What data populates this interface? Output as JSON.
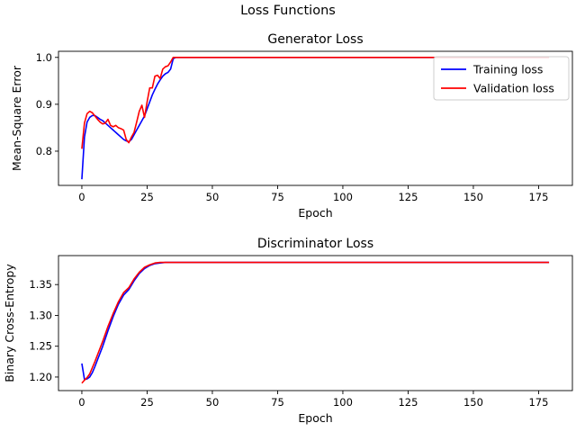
{
  "figure": {
    "suptitle": "Loss Functions"
  },
  "chart_data": [
    {
      "type": "line",
      "title": "Generator Loss",
      "xlabel": "Epoch",
      "ylabel": "Mean-Square Error",
      "xlim": [
        -8.95,
        187.95
      ],
      "ylim": [
        0.727,
        1.013
      ],
      "xticks": [
        0,
        25,
        50,
        75,
        100,
        125,
        150,
        175
      ],
      "yticks": [
        0.8,
        0.9,
        1.0
      ],
      "ytick_labels": [
        "0.8",
        "0.9",
        "1.0"
      ],
      "grid": false,
      "legend": "top-right",
      "series": [
        {
          "name": "Training loss",
          "color": "#0000ff",
          "x": [
            0,
            1,
            2,
            3,
            4,
            5,
            6,
            7,
            8,
            9,
            10,
            11,
            12,
            13,
            14,
            15,
            16,
            17,
            18,
            19,
            20,
            21,
            22,
            23,
            24,
            25,
            26,
            27,
            28,
            29,
            30,
            31,
            32,
            33,
            34,
            35,
            36,
            40,
            60,
            80,
            100,
            120,
            140,
            160,
            179
          ],
          "y": [
            0.74,
            0.83,
            0.862,
            0.872,
            0.876,
            0.876,
            0.872,
            0.868,
            0.865,
            0.86,
            0.855,
            0.85,
            0.845,
            0.84,
            0.835,
            0.83,
            0.825,
            0.822,
            0.82,
            0.825,
            0.835,
            0.845,
            0.855,
            0.865,
            0.875,
            0.89,
            0.905,
            0.92,
            0.932,
            0.943,
            0.952,
            0.96,
            0.965,
            0.968,
            0.975,
            0.997,
            1.0,
            1.0,
            1.0,
            1.0,
            1.0,
            1.0,
            1.0,
            1.0,
            1.0
          ]
        },
        {
          "name": "Validation loss",
          "color": "#ff0000",
          "x": [
            0,
            1,
            2,
            3,
            4,
            5,
            6,
            7,
            8,
            9,
            10,
            11,
            12,
            13,
            14,
            15,
            16,
            17,
            18,
            19,
            20,
            21,
            22,
            23,
            24,
            25,
            26,
            27,
            28,
            29,
            30,
            31,
            32,
            33,
            34,
            35,
            36,
            40,
            60,
            80,
            100,
            120,
            140,
            160,
            179
          ],
          "y": [
            0.805,
            0.86,
            0.88,
            0.885,
            0.882,
            0.875,
            0.868,
            0.862,
            0.858,
            0.86,
            0.868,
            0.855,
            0.852,
            0.855,
            0.85,
            0.848,
            0.845,
            0.825,
            0.818,
            0.83,
            0.84,
            0.862,
            0.885,
            0.898,
            0.872,
            0.905,
            0.935,
            0.935,
            0.96,
            0.962,
            0.955,
            0.975,
            0.98,
            0.982,
            0.99,
            1.0,
            1.0,
            1.0,
            1.0,
            1.0,
            1.0,
            1.0,
            1.0,
            1.0,
            1.0
          ]
        }
      ]
    },
    {
      "type": "line",
      "title": "Discriminator Loss",
      "xlabel": "Epoch",
      "ylabel": "Binary Cross-Entropy",
      "xlim": [
        -8.95,
        187.95
      ],
      "ylim": [
        1.178,
        1.397
      ],
      "xticks": [
        0,
        25,
        50,
        75,
        100,
        125,
        150,
        175
      ],
      "yticks": [
        1.2,
        1.25,
        1.3,
        1.35
      ],
      "ytick_labels": [
        "1.20",
        "1.25",
        "1.30",
        "1.35"
      ],
      "grid": false,
      "series": [
        {
          "name": "Training loss",
          "color": "#0000ff",
          "x": [
            0,
            1,
            2,
            3,
            4,
            5,
            6,
            8,
            10,
            12,
            14,
            16,
            18,
            20,
            22,
            24,
            26,
            28,
            30,
            32,
            34,
            36,
            40,
            60,
            80,
            100,
            120,
            140,
            160,
            179
          ],
          "y": [
            1.222,
            1.196,
            1.197,
            1.2,
            1.207,
            1.217,
            1.228,
            1.25,
            1.275,
            1.298,
            1.318,
            1.333,
            1.342,
            1.356,
            1.368,
            1.376,
            1.381,
            1.384,
            1.385,
            1.386,
            1.386,
            1.386,
            1.386,
            1.386,
            1.386,
            1.386,
            1.386,
            1.386,
            1.386,
            1.386
          ]
        },
        {
          "name": "Validation loss",
          "color": "#ff0000",
          "x": [
            0,
            1,
            2,
            3,
            4,
            5,
            6,
            8,
            10,
            12,
            14,
            16,
            18,
            20,
            22,
            24,
            26,
            28,
            30,
            32,
            34,
            36,
            40,
            60,
            80,
            100,
            120,
            140,
            160,
            179
          ],
          "y": [
            1.19,
            1.195,
            1.199,
            1.205,
            1.215,
            1.225,
            1.236,
            1.258,
            1.282,
            1.303,
            1.322,
            1.337,
            1.345,
            1.359,
            1.37,
            1.378,
            1.382,
            1.385,
            1.386,
            1.386,
            1.386,
            1.386,
            1.386,
            1.386,
            1.386,
            1.386,
            1.386,
            1.386,
            1.386,
            1.386
          ]
        }
      ]
    }
  ]
}
